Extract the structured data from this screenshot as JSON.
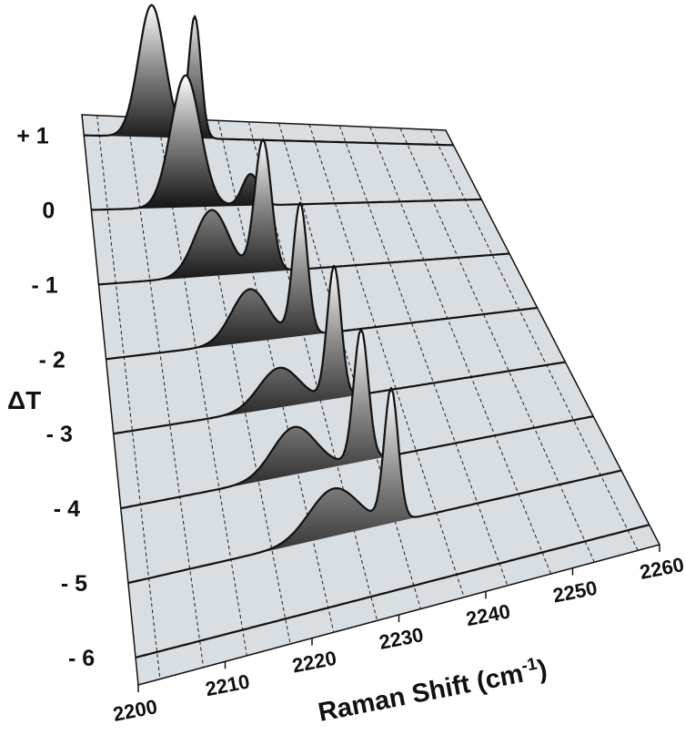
{
  "chart_data": {
    "type": "area",
    "title": "",
    "xlabel": "Raman Shift (cm",
    "xlabel_superscript": "-1",
    "xlabel_suffix": ")",
    "ylabel": "ΔT",
    "xlim": [
      2200,
      2260
    ],
    "x_ticks": [
      "2200",
      "2210",
      "2220",
      "2230",
      "2240",
      "2250",
      "2260"
    ],
    "grid": true,
    "colors": {
      "plane": "#d9dee3",
      "line": "#111111",
      "peak": "#ffffff",
      "base": "#111111"
    },
    "series": [
      {
        "label": "+ 1",
        "peaks": [
          {
            "center": 2211.0,
            "amp": 1.0,
            "width": 3.0
          },
          {
            "center": 2218.0,
            "amp": 0.92,
            "width": 1.4
          }
        ]
      },
      {
        "label": "0",
        "peaks": [
          {
            "center": 2214.5,
            "amp": 1.0,
            "width": 3.2
          },
          {
            "center": 2224.5,
            "amp": 0.24,
            "width": 1.8
          }
        ]
      },
      {
        "label": "- 1",
        "peaks": [
          {
            "center": 2216.5,
            "amp": 0.5,
            "width": 3.5
          },
          {
            "center": 2224.0,
            "amp": 1.0,
            "width": 1.7
          }
        ]
      },
      {
        "label": "- 2",
        "peaks": [
          {
            "center": 2220.0,
            "amp": 0.4,
            "width": 3.6
          },
          {
            "center": 2227.0,
            "amp": 1.0,
            "width": 1.4
          }
        ]
      },
      {
        "label": "- 3",
        "peaks": [
          {
            "center": 2222.0,
            "amp": 0.3,
            "width": 3.8
          },
          {
            "center": 2229.3,
            "amp": 1.0,
            "width": 1.3
          }
        ]
      },
      {
        "label": "- 4",
        "peaks": [
          {
            "center": 2222.0,
            "amp": 0.36,
            "width": 3.9
          },
          {
            "center": 2230.5,
            "amp": 1.0,
            "width": 1.3
          }
        ]
      },
      {
        "label": "- 5",
        "peaks": [
          {
            "center": 2225.0,
            "amp": 0.36,
            "width": 4.2
          },
          {
            "center": 2232.0,
            "amp": 1.0,
            "width": 1.2
          }
        ]
      },
      {
        "label": "- 6",
        "peaks": []
      }
    ]
  }
}
